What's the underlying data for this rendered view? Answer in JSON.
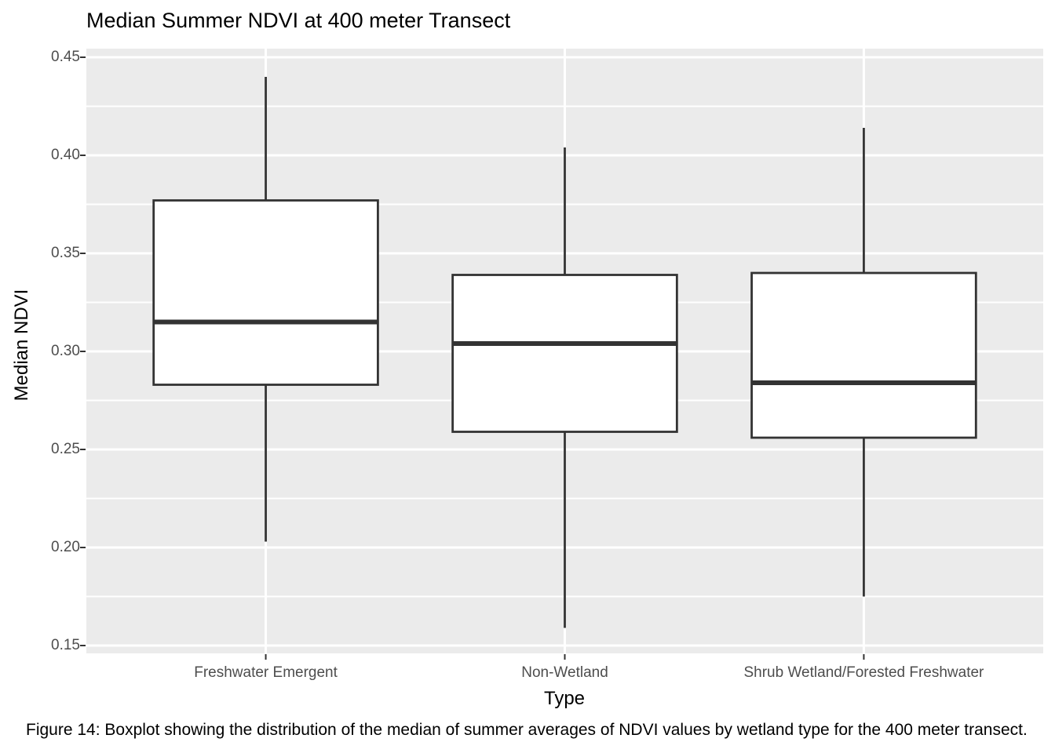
{
  "figure": {
    "caption": "Figure 14: Boxplot showing the distribution of the median of summer averages of NDVI values by wetland type for the 400 meter transect."
  },
  "chart_data": {
    "type": "boxplot",
    "title": "Median Summer NDVI at 400 meter Transect",
    "xlabel": "Type",
    "ylabel": "Median NDVI",
    "categories": [
      "Freshwater Emergent",
      "Non-Wetland",
      "Shrub Wetland/Forested Freshwater"
    ],
    "series": [
      {
        "name": "Freshwater Emergent",
        "min": 0.203,
        "q1": 0.283,
        "median": 0.315,
        "q3": 0.377,
        "max": 0.44
      },
      {
        "name": "Non-Wetland",
        "min": 0.159,
        "q1": 0.259,
        "median": 0.304,
        "q3": 0.339,
        "max": 0.404
      },
      {
        "name": "Shrub Wetland/Forested Freshwater",
        "min": 0.175,
        "q1": 0.256,
        "median": 0.284,
        "q3": 0.34,
        "max": 0.414
      }
    ],
    "yticks": [
      0.15,
      0.2,
      0.25,
      0.3,
      0.35,
      0.4,
      0.45
    ],
    "ytick_format_decimals": 2,
    "ylim": [
      0.146,
      0.4544
    ],
    "grid": true,
    "legend": false
  },
  "style": {
    "panel_bg": "#EBEBEB",
    "grid_color": "#FFFFFF",
    "box_stroke": "#333333",
    "box_fill": "#FFFFFF",
    "tick_label_color": "#4D4D4D",
    "tick_mark_color": "#333333",
    "text_color": "#000000"
  }
}
